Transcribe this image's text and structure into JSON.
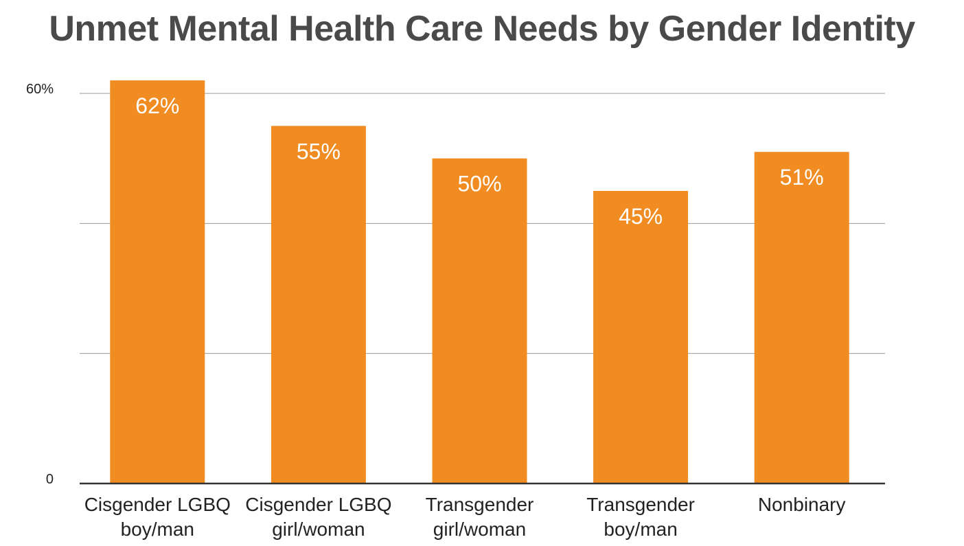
{
  "chart_data": {
    "type": "bar",
    "title": "Unmet Mental Health Care Needs by Gender Identity",
    "categories": [
      [
        "Cisgender LGBQ",
        "boy/man"
      ],
      [
        "Cisgender LGBQ",
        "girl/woman"
      ],
      [
        "Transgender",
        "girl/woman"
      ],
      [
        "Transgender",
        "boy/man"
      ],
      [
        "Nonbinary"
      ]
    ],
    "values": [
      62,
      55,
      50,
      45,
      51
    ],
    "value_labels": [
      "62%",
      "55%",
      "50%",
      "45%",
      "51%"
    ],
    "ytick_labels": [
      {
        "value": 0,
        "label": "0"
      },
      {
        "value": 60,
        "label": "60%"
      }
    ],
    "ylim": [
      0,
      60
    ],
    "gridlines": [
      20,
      40,
      60
    ],
    "grid": true,
    "xlabel": "",
    "ylabel": "",
    "bar_color": "#F08C22",
    "grid_color": "#999999",
    "axis_color": "#333333"
  }
}
